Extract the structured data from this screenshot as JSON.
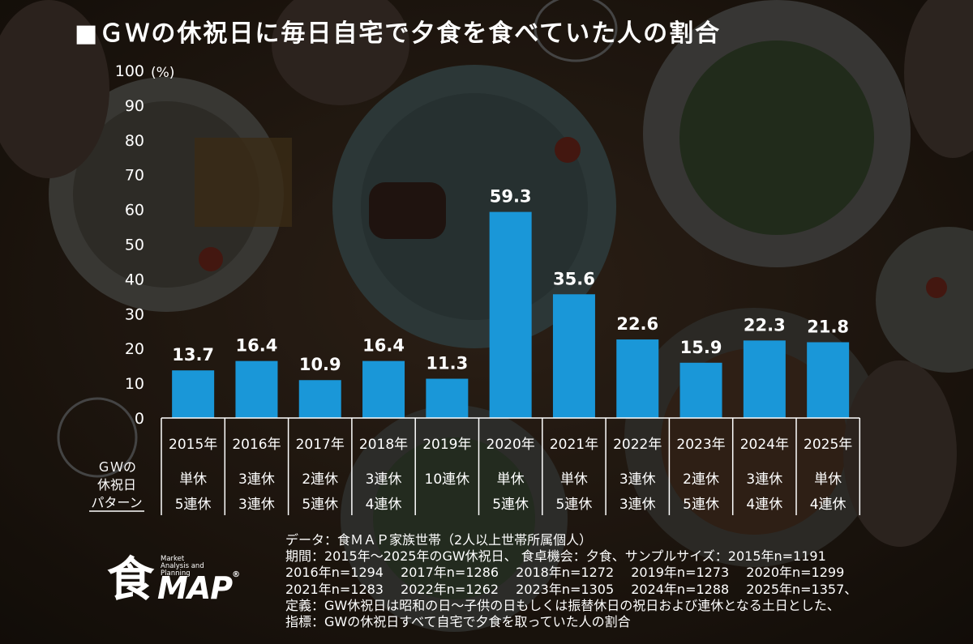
{
  "title": "■ＧＷの休祝日に毎日自宅で夕食を食べていた人の割合",
  "chart_data": {
    "type": "bar",
    "categories": [
      "2015年",
      "2016年",
      "2017年",
      "2018年",
      "2019年",
      "2020年",
      "2021年",
      "2022年",
      "2023年",
      "2024年",
      "2025年"
    ],
    "values": [
      13.7,
      16.4,
      10.9,
      16.4,
      11.3,
      59.3,
      35.6,
      22.6,
      15.9,
      22.3,
      21.8
    ],
    "value_labels": [
      "13.7",
      "16.4",
      "10.9",
      "16.4",
      "11.3",
      "59.3",
      "35.6",
      "22.6",
      "15.9",
      "22.3",
      "21.8"
    ],
    "ylim": [
      0,
      100
    ],
    "yticks": [
      "0",
      "10",
      "20",
      "30",
      "40",
      "50",
      "60",
      "70",
      "80",
      "90",
      "100"
    ],
    "yunit": "(%)",
    "bar_color": "#1a97d8",
    "pattern_label": [
      "ＧＷの",
      "休祝日",
      "パターン"
    ],
    "pattern_row1": [
      "単休",
      "3連休",
      "2連休",
      "3連休",
      "10連休",
      "単休",
      "単休",
      "3連休",
      "2連休",
      "3連休",
      "単休"
    ],
    "pattern_row2": [
      "5連休",
      "3連休",
      "5連休",
      "4連休",
      "",
      "5連休",
      "5連休",
      "3連休",
      "5連休",
      "4連休",
      "4連休"
    ]
  },
  "notes": [
    "データ：食ＭＡＰ家族世帯（2人以上世帯所属個人）",
    "期間：2015年～2025年のGW休祝日、 食卓機会：夕食、サンプルサイズ：2015年n=1191",
    "2016年n=1294　 2017年n=1286　 2018年n=1272　 2019年n=1273　 2020年n=1299",
    "2021年n=1283　 2022年n=1262　 2023年n=1305　 2024年n=1288　 2025年n=1357、",
    "定義：GW休祝日は昭和の日～子供の日もしくは振替休日の祝日および連休となる土日とした、",
    "指標：GWの休祝日すべて自宅で夕食を取っていた人の割合"
  ],
  "logo": {
    "kanji": "食",
    "map": "MAP",
    "reg": "®",
    "tagline": [
      "Market",
      "Analysis and",
      "Planning"
    ]
  }
}
